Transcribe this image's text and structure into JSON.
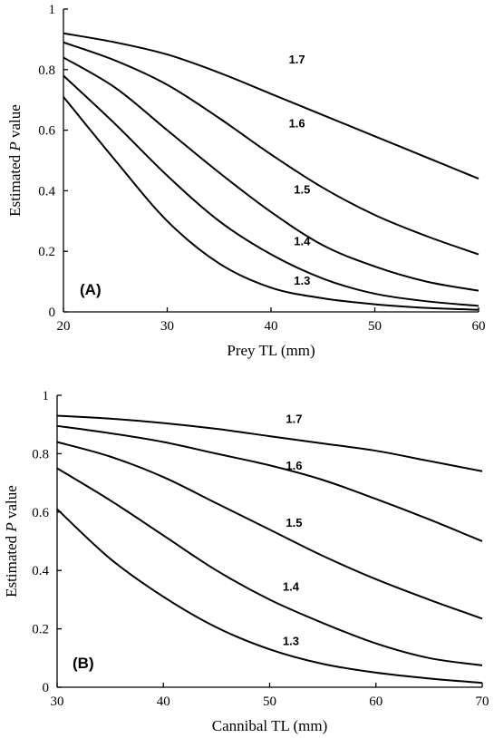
{
  "chart_data": [
    {
      "type": "line",
      "panel_label": "(A)",
      "xlabel": "Prey TL (mm)",
      "ylabel_prefix": "Estimated ",
      "ylabel_italic": "P",
      "ylabel_suffix": " value",
      "xlim": [
        20,
        60
      ],
      "ylim": [
        0,
        1
      ],
      "xticks": [
        20,
        30,
        40,
        50,
        60
      ],
      "yticks": [
        0,
        0.2,
        0.4,
        0.6,
        0.8,
        1
      ],
      "ytick_labels": [
        "0",
        "0.2",
        "0.4",
        "0.6",
        "0.8",
        "1"
      ],
      "series": [
        {
          "name": "1.7",
          "label_x": 42.5,
          "label_y": 0.82,
          "x": [
            20,
            25,
            30,
            35,
            40,
            45,
            50,
            55,
            60
          ],
          "y": [
            0.92,
            0.89,
            0.85,
            0.79,
            0.72,
            0.65,
            0.58,
            0.51,
            0.44
          ]
        },
        {
          "name": "1.6",
          "label_x": 42.5,
          "label_y": 0.61,
          "x": [
            20,
            25,
            30,
            35,
            40,
            45,
            50,
            55,
            60
          ],
          "y": [
            0.89,
            0.83,
            0.75,
            0.64,
            0.52,
            0.41,
            0.32,
            0.25,
            0.19
          ]
        },
        {
          "name": "1.5",
          "label_x": 43,
          "label_y": 0.39,
          "x": [
            20,
            25,
            30,
            35,
            40,
            45,
            50,
            55,
            60
          ],
          "y": [
            0.84,
            0.74,
            0.6,
            0.46,
            0.33,
            0.22,
            0.15,
            0.1,
            0.07
          ]
        },
        {
          "name": "1.4",
          "label_x": 43,
          "label_y": 0.22,
          "x": [
            20,
            25,
            30,
            35,
            40,
            45,
            50,
            55,
            60
          ],
          "y": [
            0.78,
            0.62,
            0.45,
            0.3,
            0.19,
            0.11,
            0.06,
            0.035,
            0.02
          ]
        },
        {
          "name": "1.3",
          "label_x": 43,
          "label_y": 0.09,
          "x": [
            20,
            25,
            30,
            35,
            40,
            45,
            50,
            55,
            60
          ],
          "y": [
            0.71,
            0.5,
            0.3,
            0.16,
            0.08,
            0.045,
            0.025,
            0.013,
            0.007
          ]
        }
      ]
    },
    {
      "type": "line",
      "panel_label": "(B)",
      "xlabel": "Cannibal TL (mm)",
      "ylabel_prefix": "Estimated ",
      "ylabel_italic": "P",
      "ylabel_suffix": " value",
      "xlim": [
        30,
        70
      ],
      "ylim": [
        0,
        1
      ],
      "xticks": [
        30,
        40,
        50,
        60,
        70
      ],
      "yticks": [
        0,
        0.2,
        0.4,
        0.6,
        0.8,
        1
      ],
      "ytick_labels": [
        "0",
        "0.2",
        "0.4",
        "0.6",
        "0.8",
        "1"
      ],
      "series": [
        {
          "name": "1.7",
          "label_x": 52.3,
          "label_y": 0.905,
          "x": [
            30,
            35,
            40,
            45,
            50,
            55,
            60,
            65,
            70
          ],
          "y": [
            0.93,
            0.92,
            0.905,
            0.885,
            0.86,
            0.835,
            0.81,
            0.775,
            0.74
          ]
        },
        {
          "name": "1.6",
          "label_x": 52.3,
          "label_y": 0.745,
          "x": [
            30,
            35,
            40,
            45,
            50,
            55,
            60,
            65,
            70
          ],
          "y": [
            0.895,
            0.87,
            0.84,
            0.8,
            0.76,
            0.71,
            0.645,
            0.575,
            0.5
          ]
        },
        {
          "name": "1.5",
          "label_x": 52.3,
          "label_y": 0.55,
          "x": [
            30,
            35,
            40,
            45,
            50,
            55,
            60,
            65,
            70
          ],
          "y": [
            0.84,
            0.79,
            0.72,
            0.63,
            0.54,
            0.45,
            0.37,
            0.3,
            0.235
          ]
        },
        {
          "name": "1.4",
          "label_x": 52,
          "label_y": 0.33,
          "x": [
            30,
            35,
            40,
            45,
            50,
            55,
            60,
            65,
            70
          ],
          "y": [
            0.75,
            0.64,
            0.52,
            0.4,
            0.3,
            0.22,
            0.15,
            0.1,
            0.075
          ]
        },
        {
          "name": "1.3",
          "label_x": 52,
          "label_y": 0.145,
          "x": [
            30,
            35,
            40,
            45,
            50,
            55,
            60,
            65,
            70
          ],
          "y": [
            0.61,
            0.44,
            0.31,
            0.205,
            0.13,
            0.08,
            0.05,
            0.03,
            0.015
          ]
        }
      ]
    }
  ]
}
